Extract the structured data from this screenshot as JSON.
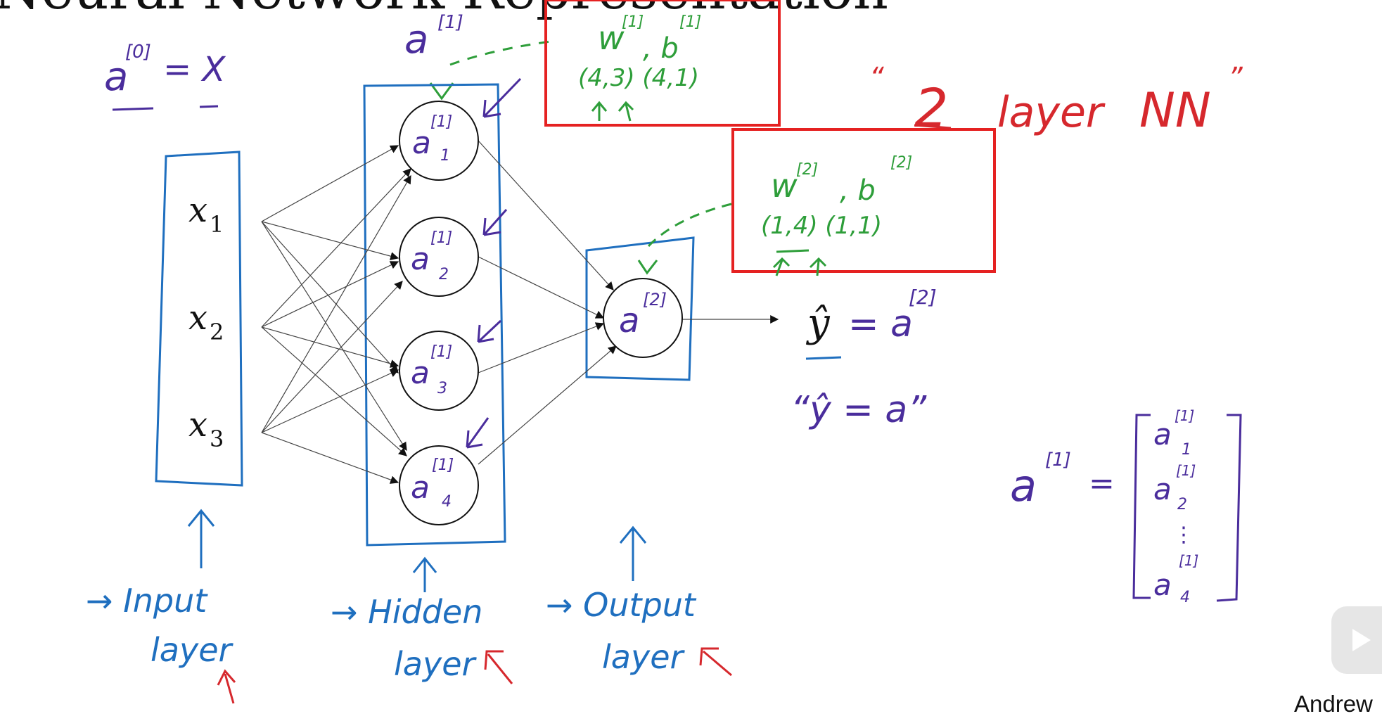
{
  "title": "Neural Network Representation",
  "input_label_a0": "a[0] = X",
  "nodes": {
    "inputs": [
      "x1",
      "x2",
      "x3"
    ],
    "hidden": [
      "a1[1]",
      "a2[1]",
      "a3[1]",
      "a4[1]"
    ],
    "output": "a[2]"
  },
  "text": {
    "a1_top": "a",
    "a1_top_sup": "[1]",
    "a0_a": "a",
    "a0_sup": "[0]",
    "a0_eq": "= X",
    "x_sub": [
      "1",
      "2",
      "3"
    ],
    "h_sub": [
      "1",
      "2",
      "3",
      "4"
    ],
    "h_sup": "[1]",
    "out_sup": "[2]",
    "yhat": "ŷ = a",
    "yhat_sup": "[2]",
    "yhat_quote": "“ŷ = a”",
    "nn_label": "“2 layer NN”",
    "w1b1": "w[1], b[1]",
    "w1_dims": "(4,3)  (4,1)",
    "w2b2": "w[2], b[2]",
    "w2_dims": "(1,4)   (1,1)",
    "input_layer": [
      "→ Input",
      "layer"
    ],
    "hidden_layer": [
      "→ Hidden",
      "layer"
    ],
    "output_layer": [
      "→ Output",
      "layer"
    ],
    "a1_vec": "a[1] =",
    "vec_entries": [
      "a1[1]",
      "a2[1]",
      "⋮",
      "a4[1]"
    ]
  },
  "author": "Andrew",
  "colors": {
    "blue": "#1f6fbf",
    "purple": "#4a2d9c",
    "green": "#2e9e3a",
    "red": "#d6282d",
    "highlight_box": "#e52121"
  },
  "icons": {
    "play": "play-icon"
  }
}
